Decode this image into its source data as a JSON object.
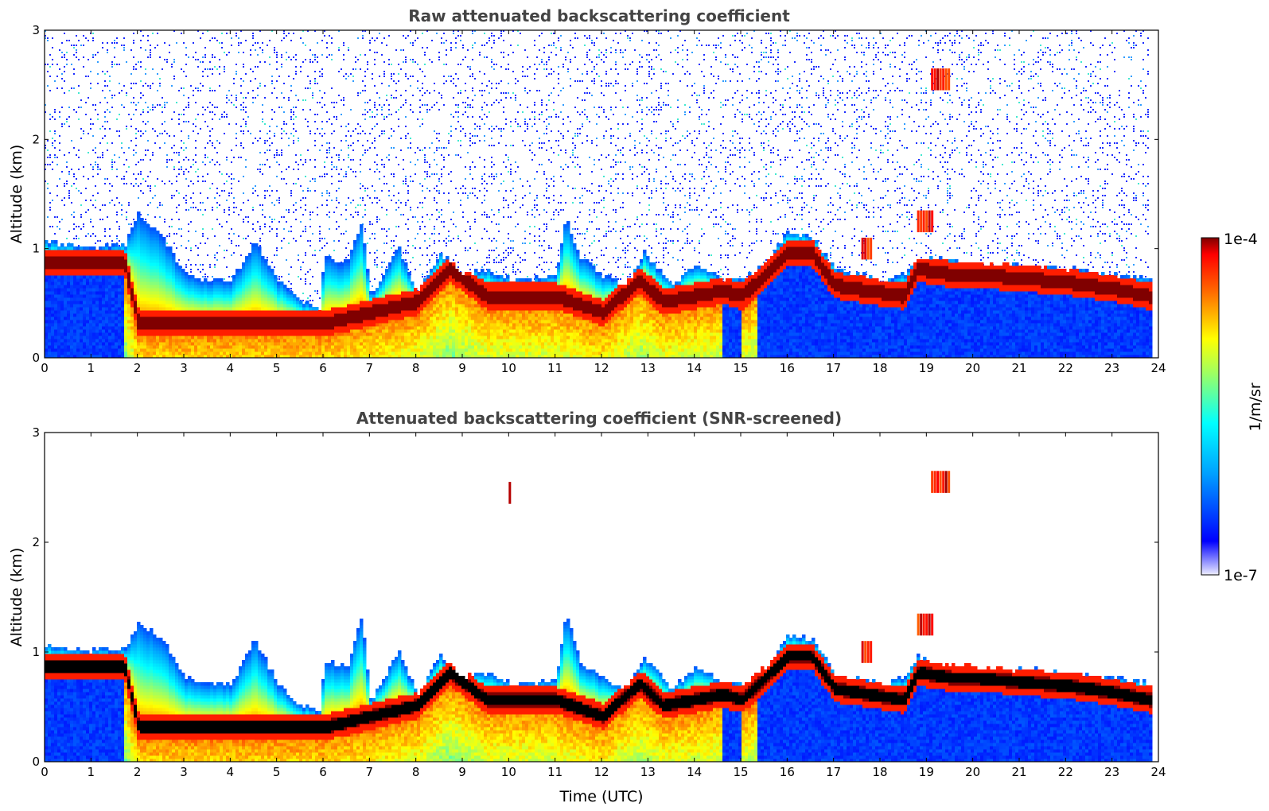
{
  "figure": {
    "xlabel": "Time (UTC)",
    "colorbar": {
      "label": "1/m/sr",
      "max_label": "1e-4",
      "min_label": "1e-7",
      "colormap": "jet",
      "scale": "log",
      "vmin": 1e-07,
      "vmax": 0.0001
    }
  },
  "chart_data": [
    {
      "type": "heatmap",
      "title": "Raw attenuated backscattering coefficient",
      "xlabel": "",
      "ylabel": "Altitude (km)",
      "xlim": [
        0,
        24
      ],
      "ylim": [
        0,
        3
      ],
      "x_ticks": [
        "0",
        "1",
        "2",
        "3",
        "4",
        "5",
        "6",
        "7",
        "8",
        "9",
        "10",
        "11",
        "12",
        "13",
        "14",
        "15",
        "16",
        "17",
        "18",
        "19",
        "20",
        "21",
        "22",
        "23",
        "24"
      ],
      "y_ticks": [
        "0",
        "1",
        "2",
        "3"
      ],
      "noise_above_boundary_layer": true,
      "boundary_layer_top_km": [
        [
          0.0,
          1.05
        ],
        [
          1.0,
          1.0
        ],
        [
          1.7,
          1.02
        ],
        [
          2.0,
          1.3
        ],
        [
          2.5,
          1.1
        ],
        [
          3.0,
          0.75
        ],
        [
          3.5,
          0.7
        ],
        [
          4.0,
          0.7
        ],
        [
          4.5,
          1.05
        ],
        [
          5.0,
          0.7
        ],
        [
          5.5,
          0.5
        ],
        [
          5.9,
          0.45
        ],
        [
          6.0,
          0.9
        ],
        [
          6.5,
          0.85
        ],
        [
          6.8,
          1.25
        ],
        [
          7.0,
          0.55
        ],
        [
          7.6,
          1.0
        ],
        [
          8.0,
          0.6
        ],
        [
          8.5,
          0.95
        ],
        [
          9.0,
          0.75
        ],
        [
          9.5,
          0.8
        ],
        [
          10.0,
          0.7
        ],
        [
          10.5,
          0.7
        ],
        [
          11.0,
          0.75
        ],
        [
          11.2,
          1.3
        ],
        [
          11.5,
          0.9
        ],
        [
          12.0,
          0.75
        ],
        [
          12.5,
          0.65
        ],
        [
          12.9,
          0.95
        ],
        [
          13.5,
          0.65
        ],
        [
          14.0,
          0.85
        ],
        [
          14.6,
          0.7
        ],
        [
          15.0,
          0.7
        ],
        [
          15.5,
          0.85
        ],
        [
          16.0,
          1.15
        ],
        [
          16.5,
          1.1
        ],
        [
          17.0,
          0.8
        ],
        [
          17.5,
          0.75
        ],
        [
          18.0,
          0.7
        ],
        [
          18.5,
          0.75
        ],
        [
          18.8,
          0.9
        ],
        [
          19.0,
          0.9
        ],
        [
          19.5,
          0.88
        ],
        [
          20.0,
          0.85
        ],
        [
          21.0,
          0.83
        ],
        [
          22.0,
          0.8
        ],
        [
          23.0,
          0.75
        ],
        [
          23.8,
          0.7
        ]
      ],
      "peak_layer_km": [
        [
          0.0,
          0.85
        ],
        [
          1.7,
          0.85
        ],
        [
          2.0,
          0.3
        ],
        [
          6.0,
          0.3
        ],
        [
          7.0,
          0.4
        ],
        [
          8.0,
          0.5
        ],
        [
          8.7,
          0.8
        ],
        [
          9.5,
          0.55
        ],
        [
          11.0,
          0.55
        ],
        [
          12.0,
          0.4
        ],
        [
          12.8,
          0.7
        ],
        [
          13.3,
          0.5
        ],
        [
          14.6,
          0.6
        ],
        [
          15.0,
          0.55
        ],
        [
          16.0,
          0.95
        ],
        [
          16.5,
          0.95
        ],
        [
          17.0,
          0.65
        ],
        [
          18.5,
          0.55
        ],
        [
          18.8,
          0.8
        ],
        [
          19.5,
          0.75
        ],
        [
          20.0,
          0.75
        ],
        [
          22.0,
          0.68
        ],
        [
          23.0,
          0.62
        ],
        [
          23.8,
          0.55
        ]
      ],
      "elevated_layers": [
        {
          "t_range": [
            19.1,
            19.5
          ],
          "alt_km": 2.55
        },
        {
          "t_range": [
            18.8,
            19.1
          ],
          "alt_km": 1.25
        },
        {
          "t_range": [
            17.6,
            17.8
          ],
          "alt_km": 1.0
        }
      ]
    },
    {
      "type": "heatmap",
      "title": "Attenuated backscattering coefficient (SNR-screened)",
      "xlabel": "Time (UTC)",
      "ylabel": "Altitude (km)",
      "xlim": [
        0,
        24
      ],
      "ylim": [
        0,
        3
      ],
      "x_ticks": [
        "0",
        "1",
        "2",
        "3",
        "4",
        "5",
        "6",
        "7",
        "8",
        "9",
        "10",
        "11",
        "12",
        "13",
        "14",
        "15",
        "16",
        "17",
        "18",
        "19",
        "20",
        "21",
        "22",
        "23",
        "24"
      ],
      "y_ticks": [
        "0",
        "1",
        "2",
        "3"
      ],
      "noise_above_boundary_layer": false,
      "saturated_core_color": "#000000",
      "boundary_layer_top_km": [
        [
          0.0,
          1.05
        ],
        [
          1.0,
          1.0
        ],
        [
          1.7,
          1.02
        ],
        [
          2.0,
          1.25
        ],
        [
          2.5,
          1.1
        ],
        [
          3.0,
          0.75
        ],
        [
          3.5,
          0.7
        ],
        [
          4.0,
          0.7
        ],
        [
          4.5,
          1.1
        ],
        [
          5.0,
          0.7
        ],
        [
          5.5,
          0.5
        ],
        [
          5.9,
          0.45
        ],
        [
          6.0,
          0.9
        ],
        [
          6.5,
          0.85
        ],
        [
          6.8,
          1.3
        ],
        [
          7.0,
          0.55
        ],
        [
          7.6,
          1.0
        ],
        [
          8.0,
          0.6
        ],
        [
          8.5,
          0.95
        ],
        [
          9.0,
          0.75
        ],
        [
          9.5,
          0.8
        ],
        [
          10.0,
          0.7
        ],
        [
          10.5,
          0.7
        ],
        [
          11.0,
          0.75
        ],
        [
          11.2,
          1.35
        ],
        [
          11.5,
          0.9
        ],
        [
          12.0,
          0.75
        ],
        [
          12.5,
          0.65
        ],
        [
          12.9,
          0.95
        ],
        [
          13.5,
          0.65
        ],
        [
          14.0,
          0.85
        ],
        [
          14.6,
          0.7
        ],
        [
          15.0,
          0.7
        ],
        [
          15.5,
          0.85
        ],
        [
          16.0,
          1.15
        ],
        [
          16.5,
          1.1
        ],
        [
          17.0,
          0.8
        ],
        [
          17.5,
          0.75
        ],
        [
          18.0,
          0.7
        ],
        [
          18.5,
          0.75
        ],
        [
          18.8,
          0.95
        ],
        [
          19.0,
          0.9
        ],
        [
          19.5,
          0.88
        ],
        [
          20.0,
          0.85
        ],
        [
          21.0,
          0.83
        ],
        [
          22.0,
          0.8
        ],
        [
          23.0,
          0.75
        ],
        [
          23.8,
          0.7
        ]
      ],
      "peak_layer_km": [
        [
          0.0,
          0.85
        ],
        [
          1.7,
          0.85
        ],
        [
          2.0,
          0.3
        ],
        [
          6.0,
          0.3
        ],
        [
          7.0,
          0.4
        ],
        [
          8.0,
          0.5
        ],
        [
          8.7,
          0.8
        ],
        [
          9.5,
          0.55
        ],
        [
          11.0,
          0.55
        ],
        [
          12.0,
          0.4
        ],
        [
          12.8,
          0.7
        ],
        [
          13.3,
          0.5
        ],
        [
          14.6,
          0.6
        ],
        [
          15.0,
          0.55
        ],
        [
          16.0,
          0.95
        ],
        [
          16.5,
          0.95
        ],
        [
          17.0,
          0.65
        ],
        [
          18.5,
          0.55
        ],
        [
          18.8,
          0.8
        ],
        [
          19.5,
          0.75
        ],
        [
          20.0,
          0.75
        ],
        [
          22.0,
          0.68
        ],
        [
          23.0,
          0.62
        ],
        [
          23.8,
          0.55
        ]
      ],
      "elevated_layers": [
        {
          "t_range": [
            19.1,
            19.5
          ],
          "alt_km": 2.55
        },
        {
          "t_range": [
            18.8,
            19.1
          ],
          "alt_km": 1.25
        },
        {
          "t_range": [
            17.6,
            17.8
          ],
          "alt_km": 1.0
        },
        {
          "t_range": [
            10.0,
            10.05
          ],
          "alt_km": 2.45
        }
      ]
    }
  ]
}
